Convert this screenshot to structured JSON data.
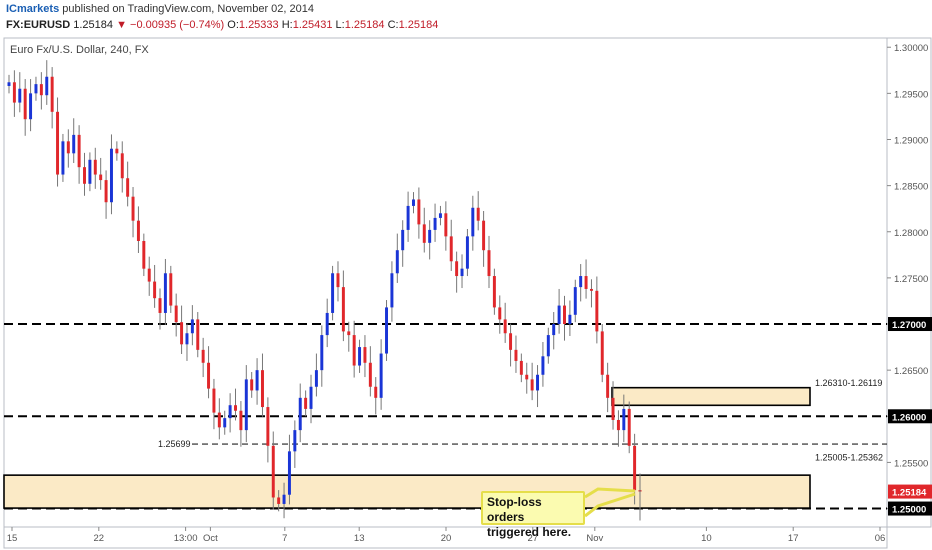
{
  "header": {
    "publisher": "ICmarkets",
    "published_text": "published on TradingView.com, November 02, 2014",
    "symbol": "FX:EURUSD",
    "last": "1.25184",
    "change": "−0.00935 (−0.74%)",
    "o_label": "O:",
    "o_value": "1.25333",
    "h_label": "H:",
    "h_value": "1.25431",
    "l_label": "L:",
    "l_value": "1.25184",
    "c_label": "C:",
    "c_value": "1.25184"
  },
  "chart_title": "Euro Fx/U.S. Dollar, 240, FX",
  "colors": {
    "up": "#1a35d6",
    "down": "#e0272b",
    "zone_fill": "#fbe8c0",
    "zone_border": "#000000",
    "price_tag": "#e0272b"
  },
  "chart_data": {
    "type": "candlestick",
    "y_ticks": [
      1.3,
      1.295,
      1.29,
      1.285,
      1.28,
      1.275,
      1.27,
      1.265,
      1.26,
      1.255,
      1.25
    ],
    "y_tick_labels": [
      "1.30000",
      "1.29500",
      "1.29000",
      "1.28500",
      "1.28000",
      "1.27500",
      "1.27000",
      "1.26500",
      "1.26000",
      "1.25500",
      "1.25000"
    ],
    "ylim": [
      1.248,
      1.301
    ],
    "x_tick_labels": [
      "15",
      "22",
      "13:00",
      "Oct",
      "7",
      "13",
      "20",
      "27",
      "Nov",
      "10",
      "17",
      "06"
    ],
    "x_tick_dates": [
      "2014-09-15",
      "2014-09-22",
      "2014-09-29",
      "2014-10-01",
      "2014-10-07",
      "2014-10-13",
      "2014-10-20",
      "2014-10-27",
      "2014-11-01",
      "2014-11-10",
      "2014-11-17",
      "2014-11-24"
    ],
    "horizontal_levels": [
      {
        "price": 1.27,
        "label": "1.27000",
        "style": "bold-dashed"
      },
      {
        "price": 1.26,
        "label": "1.26000",
        "style": "bold-dashed"
      },
      {
        "price": 1.25,
        "label": "1.25000",
        "style": "bold-dashed"
      },
      {
        "price": 1.25699,
        "label": "1.25699",
        "style": "thin-dashed"
      }
    ],
    "zones": [
      {
        "low": 1.25005,
        "high": 1.25362,
        "label": "1.25005-1.25362"
      },
      {
        "low": 1.26119,
        "high": 1.2631,
        "label": "1.26310-1.26119"
      }
    ],
    "last_price": "1.25184",
    "close_path": [
      1.2962,
      1.294,
      1.2955,
      1.2922,
      1.295,
      1.296,
      1.2948,
      1.2968,
      1.293,
      1.2862,
      1.2898,
      1.2885,
      1.2905,
      1.287,
      1.2852,
      1.2878,
      1.2862,
      1.2856,
      1.2832,
      1.289,
      1.2885,
      1.2858,
      1.2838,
      1.2812,
      1.279,
      1.276,
      1.2746,
      1.2728,
      1.2712,
      1.2755,
      1.272,
      1.2702,
      1.2678,
      1.269,
      1.2705,
      1.2672,
      1.2658,
      1.263,
      1.2604,
      1.2588,
      1.2598,
      1.2612,
      1.2606,
      1.2585,
      1.264,
      1.2628,
      1.265,
      1.261,
      1.2568,
      1.2512,
      1.2505,
      1.2515,
      1.2562,
      1.2585,
      1.262,
      1.2608,
      1.2632,
      1.265,
      1.2688,
      1.2712,
      1.2755,
      1.274,
      1.2692,
      1.2688,
      1.2655,
      1.2675,
      1.2658,
      1.2632,
      1.262,
      1.2668,
      1.2718,
      1.2755,
      1.278,
      1.2802,
      1.2828,
      1.2835,
      1.2808,
      1.2788,
      1.2802,
      1.2815,
      1.282,
      1.2795,
      1.2768,
      1.2752,
      1.276,
      1.2795,
      1.2826,
      1.2812,
      1.278,
      1.2752,
      1.2718,
      1.2705,
      1.269,
      1.2672,
      1.266,
      1.2645,
      1.264,
      1.2628,
      1.2645,
      1.2665,
      1.2688,
      1.27,
      1.272,
      1.27,
      1.271,
      1.274,
      1.2752,
      1.2738,
      1.2736,
      1.2692,
      1.2645,
      1.262,
      1.2596,
      1.2585,
      1.2608,
      1.2568,
      1.252,
      1.25184
    ]
  },
  "level_labels": {
    "zone_upper": "1.26310-1.26119",
    "zone_lower": "1.25005-1.25362",
    "level_mid": "1.25699"
  },
  "annotation": {
    "line1": "Stop-loss orders",
    "line2": "triggered here."
  }
}
